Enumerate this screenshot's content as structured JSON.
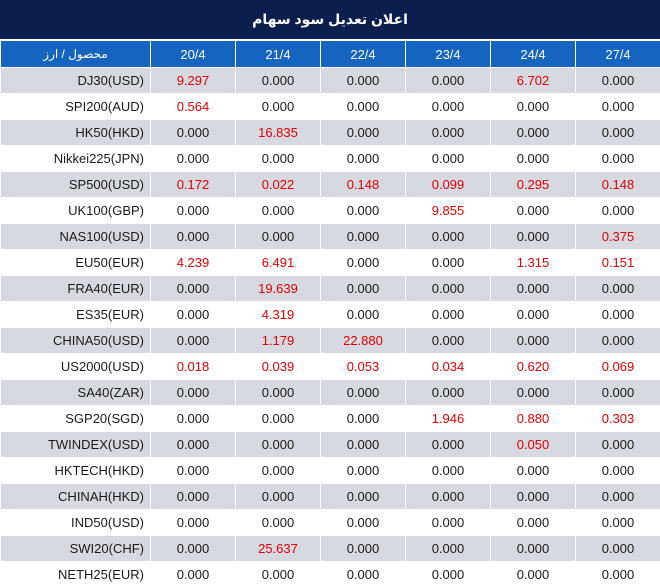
{
  "title": "اعلان تعدیل سود سهام",
  "header": {
    "instrument_label": "محصول / ارز",
    "dates": [
      "20/4",
      "21/4",
      "22/4",
      "23/4",
      "24/4",
      "27/4"
    ]
  },
  "colors": {
    "title_bg": "#0b1e4d",
    "header_bg": "#1565c0",
    "shade_row": "#d7d9e0",
    "highlight_value": "#e00000"
  },
  "rows": [
    {
      "name": "DJ30(USD)",
      "values": [
        "9.297",
        "0.000",
        "0.000",
        "0.000",
        "6.702",
        "0.000"
      ]
    },
    {
      "name": "SPI200(AUD)",
      "values": [
        "0.564",
        "0.000",
        "0.000",
        "0.000",
        "0.000",
        "0.000"
      ]
    },
    {
      "name": "HK50(HKD)",
      "values": [
        "0.000",
        "16.835",
        "0.000",
        "0.000",
        "0.000",
        "0.000"
      ]
    },
    {
      "name": "Nikkei225(JPN)",
      "values": [
        "0.000",
        "0.000",
        "0.000",
        "0.000",
        "0.000",
        "0.000"
      ]
    },
    {
      "name": "SP500(USD)",
      "values": [
        "0.172",
        "0.022",
        "0.148",
        "0.099",
        "0.295",
        "0.148"
      ]
    },
    {
      "name": "UK100(GBP)",
      "values": [
        "0.000",
        "0.000",
        "0.000",
        "9.855",
        "0.000",
        "0.000"
      ]
    },
    {
      "name": "NAS100(USD)",
      "values": [
        "0.000",
        "0.000",
        "0.000",
        "0.000",
        "0.000",
        "0.375"
      ]
    },
    {
      "name": "EU50(EUR)",
      "values": [
        "4.239",
        "6.491",
        "0.000",
        "0.000",
        "1.315",
        "0.151"
      ]
    },
    {
      "name": "FRA40(EUR)",
      "values": [
        "0.000",
        "19.639",
        "0.000",
        "0.000",
        "0.000",
        "0.000"
      ]
    },
    {
      "name": "ES35(EUR)",
      "values": [
        "0.000",
        "4.319",
        "0.000",
        "0.000",
        "0.000",
        "0.000"
      ]
    },
    {
      "name": "CHINA50(USD)",
      "values": [
        "0.000",
        "1.179",
        "22.880",
        "0.000",
        "0.000",
        "0.000"
      ]
    },
    {
      "name": "US2000(USD)",
      "values": [
        "0.018",
        "0.039",
        "0.053",
        "0.034",
        "0.620",
        "0.069"
      ]
    },
    {
      "name": "SA40(ZAR)",
      "values": [
        "0.000",
        "0.000",
        "0.000",
        "0.000",
        "0.000",
        "0.000"
      ]
    },
    {
      "name": "SGP20(SGD)",
      "values": [
        "0.000",
        "0.000",
        "0.000",
        "1.946",
        "0.880",
        "0.303"
      ]
    },
    {
      "name": "TWINDEX(USD)",
      "values": [
        "0.000",
        "0.000",
        "0.000",
        "0.000",
        "0.050",
        "0.000"
      ]
    },
    {
      "name": "HKTECH(HKD)",
      "values": [
        "0.000",
        "0.000",
        "0.000",
        "0.000",
        "0.000",
        "0.000"
      ]
    },
    {
      "name": "CHINAH(HKD)",
      "values": [
        "0.000",
        "0.000",
        "0.000",
        "0.000",
        "0.000",
        "0.000"
      ]
    },
    {
      "name": "IND50(USD)",
      "values": [
        "0.000",
        "0.000",
        "0.000",
        "0.000",
        "0.000",
        "0.000"
      ]
    },
    {
      "name": "SWI20(CHF)",
      "values": [
        "0.000",
        "25.637",
        "0.000",
        "0.000",
        "0.000",
        "0.000"
      ]
    },
    {
      "name": "NETH25(EUR)",
      "values": [
        "0.000",
        "0.000",
        "0.000",
        "0.000",
        "0.000",
        "0.000"
      ]
    }
  ]
}
